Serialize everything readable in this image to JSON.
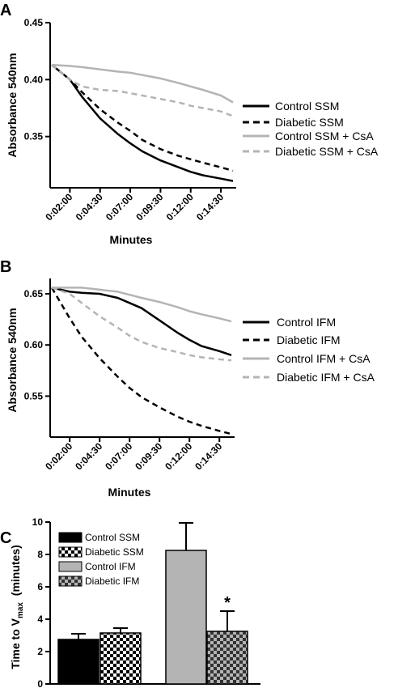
{
  "colors": {
    "control_ssm": "#000000",
    "diabetic_ssm": "#000000",
    "control_csa": "#b4b4b4",
    "diabetic_csa": "#b4b4b4",
    "bar_control_ifm": "#b4b4b4"
  },
  "chart_data": [
    {
      "panel": "A",
      "type": "line",
      "ylabel": "Absorbance 540nm",
      "xlabel": "Minutes",
      "ylim": [
        0.305,
        0.45
      ],
      "yticks": [
        "0.45",
        "0.40",
        "0.35"
      ],
      "xticks": [
        "0:02:00",
        "0:04:30",
        "0:07:00",
        "0:09:30",
        "0:12:00",
        "0:14:30"
      ],
      "x": [
        0.5,
        2,
        3,
        4.5,
        6,
        7,
        8,
        9.5,
        11,
        12,
        13,
        14.5,
        15.5
      ],
      "series": [
        {
          "name": "Control SSM",
          "style": "solid-black",
          "values": [
            0.413,
            0.4,
            0.385,
            0.366,
            0.352,
            0.344,
            0.337,
            0.329,
            0.323,
            0.319,
            0.316,
            0.313,
            0.311
          ]
        },
        {
          "name": "Diabetic SSM",
          "style": "dashed-black",
          "values": [
            0.413,
            0.4,
            0.389,
            0.374,
            0.362,
            0.355,
            0.347,
            0.339,
            0.333,
            0.33,
            0.327,
            0.323,
            0.32
          ]
        },
        {
          "name": "Control  SSM + CsA",
          "style": "solid-gray",
          "values": [
            0.413,
            0.412,
            0.411,
            0.409,
            0.407,
            0.406,
            0.404,
            0.401,
            0.397,
            0.394,
            0.391,
            0.386,
            0.38
          ]
        },
        {
          "name": "Diabetic SSM + CsA",
          "style": "dashed-gray",
          "values": [
            0.413,
            0.4,
            0.394,
            0.391,
            0.39,
            0.388,
            0.386,
            0.383,
            0.38,
            0.377,
            0.375,
            0.372,
            0.368
          ]
        }
      ]
    },
    {
      "panel": "B",
      "type": "line",
      "ylabel": "Absorbance 540nm",
      "xlabel": "Minutes",
      "ylim": [
        0.51,
        0.665
      ],
      "yticks": [
        "0.65",
        "0.60",
        "0.55"
      ],
      "xticks": [
        "0:02:00",
        "0:04:30",
        "0:07:00",
        "0:09:30",
        "0:12:00",
        "0:14:30"
      ],
      "x": [
        0.5,
        2,
        3,
        4.5,
        6,
        7,
        8,
        9.5,
        11,
        12,
        13,
        14.5,
        15.5
      ],
      "series": [
        {
          "name": "Control IFM",
          "style": "solid-black",
          "values": [
            0.656,
            0.652,
            0.651,
            0.65,
            0.646,
            0.641,
            0.636,
            0.624,
            0.612,
            0.605,
            0.599,
            0.594,
            0.59
          ]
        },
        {
          "name": "Diabetic IFM",
          "style": "dashed-black",
          "values": [
            0.656,
            0.626,
            0.608,
            0.587,
            0.569,
            0.558,
            0.549,
            0.539,
            0.53,
            0.525,
            0.521,
            0.516,
            0.513
          ]
        },
        {
          "name": "Control IFM + CsA",
          "style": "solid-gray",
          "values": [
            0.656,
            0.656,
            0.656,
            0.654,
            0.652,
            0.649,
            0.646,
            0.642,
            0.637,
            0.633,
            0.63,
            0.626,
            0.623
          ]
        },
        {
          "name": "Diabetic IFM +  CsA",
          "style": "dashed-gray",
          "values": [
            0.656,
            0.65,
            0.641,
            0.628,
            0.617,
            0.609,
            0.603,
            0.597,
            0.593,
            0.59,
            0.588,
            0.586,
            0.585
          ]
        }
      ]
    },
    {
      "panel": "C",
      "type": "bar",
      "ylabel_main": "Time to V",
      "ylabel_sub": "max",
      "ylabel_tail": "  (minutes)",
      "ylim": [
        0,
        10
      ],
      "yticks": [
        "0",
        "2",
        "4",
        "6",
        "8",
        "10"
      ],
      "bars": [
        {
          "name": "Control SSM",
          "value": 2.75,
          "error": 0.35,
          "pattern": "black"
        },
        {
          "name": "Diabetic SSM",
          "value": 3.15,
          "error": 0.3,
          "pattern": "checker"
        },
        {
          "name": "Control IFM",
          "value": 8.25,
          "error": 1.7,
          "pattern": "gray"
        },
        {
          "name": "Diabetic IFM",
          "value": 3.25,
          "error": 1.25,
          "pattern": "gray-checker"
        }
      ],
      "annotation": "*"
    }
  ]
}
